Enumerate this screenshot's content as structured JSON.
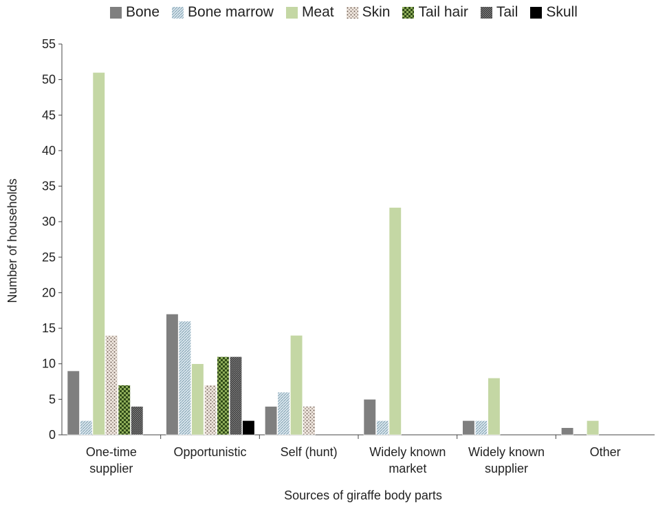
{
  "chart_data": {
    "type": "bar",
    "title": "",
    "xlabel": "Sources of giraffe body parts",
    "ylabel": "Number of households",
    "ylim": [
      0,
      55
    ],
    "yticks": [
      0,
      5,
      10,
      15,
      20,
      25,
      30,
      35,
      40,
      45,
      50,
      55
    ],
    "grid": false,
    "legend_position": "top",
    "categories": [
      [
        "One-time",
        "supplier"
      ],
      [
        "Opportunistic"
      ],
      [
        "Self (hunt)"
      ],
      [
        "Widely known",
        "market"
      ],
      [
        "Widely known",
        "supplier"
      ],
      [
        "Other"
      ]
    ],
    "series": [
      {
        "name": "Bone",
        "color": "#7f7f7f",
        "pattern": "solid",
        "values": [
          9,
          17,
          4,
          5,
          2,
          1
        ]
      },
      {
        "name": "Bone marrow",
        "color": "#c9d9e2",
        "pattern": "hatch",
        "values": [
          2,
          16,
          6,
          2,
          2,
          0
        ]
      },
      {
        "name": "Meat",
        "color": "#c4d7a4",
        "pattern": "solid",
        "values": [
          51,
          10,
          14,
          32,
          8,
          2
        ]
      },
      {
        "name": "Skin",
        "color": "#e2d6cc",
        "pattern": "dots",
        "values": [
          14,
          7,
          4,
          0,
          0,
          0
        ]
      },
      {
        "name": "Tail hair",
        "color": "#4f6b2a",
        "pattern": "checker",
        "values": [
          7,
          11,
          0,
          0,
          0,
          0
        ]
      },
      {
        "name": "Tail",
        "color": "#5a5a5a",
        "pattern": "dense",
        "values": [
          4,
          11,
          0,
          0,
          0,
          0
        ]
      },
      {
        "name": "Skull",
        "color": "#000000",
        "pattern": "solid",
        "values": [
          0,
          2,
          0,
          0,
          0,
          0
        ]
      }
    ]
  }
}
